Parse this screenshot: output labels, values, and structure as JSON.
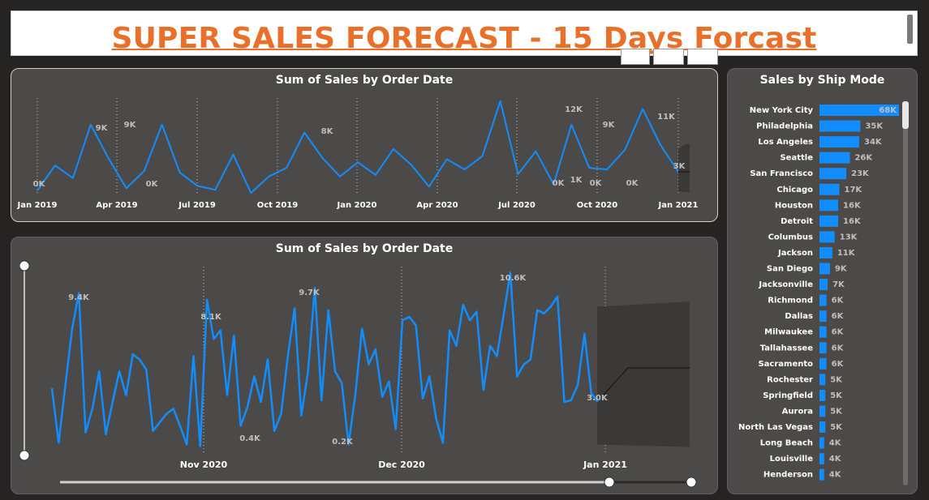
{
  "header": {
    "title": "SUPER SALES FORECAST - 15 Days Forcast"
  },
  "colors": {
    "accent": "#118dff",
    "title": "#e8702a",
    "panel": "#4c4a48",
    "background": "#252423"
  },
  "chart_data": [
    {
      "type": "line",
      "title": "Sum of Sales by Order Date",
      "x_tick_labels": [
        "Jan 2019",
        "Apr 2019",
        "Jul 2019",
        "Oct 2019",
        "Jan 2020",
        "Apr 2020",
        "Jul 2020",
        "Oct 2020",
        "Jan 2021"
      ],
      "data_labels": [
        "0K",
        "9K",
        "9K",
        "0K",
        "8K",
        "12K",
        "0K",
        "1K",
        "9K",
        "0K",
        "0K",
        "11K",
        "3K"
      ],
      "ylim": [
        0,
        12500
      ],
      "series": [
        {
          "values": [
            600,
            3800,
            2200,
            9000,
            4700,
            900,
            3100,
            9000,
            2900,
            1200,
            700,
            5200,
            300,
            2400,
            3500,
            8000,
            4800,
            2400,
            4200,
            2600,
            5900,
            3900,
            1100,
            4600,
            3300,
            5000,
            12000,
            2700,
            5600,
            1400,
            9000,
            3500,
            3300,
            5800,
            11000,
            6400,
            3000
          ]
        }
      ],
      "forecast": {
        "upper": [
          5800,
          6300,
          6500,
          6600
        ],
        "lower": [
          500,
          450,
          400,
          350
        ],
        "center": [
          3000,
          3000,
          3000,
          3000
        ]
      }
    },
    {
      "type": "line",
      "title": "Sum of Sales by Order Date",
      "x_tick_labels": [
        "Nov 2020",
        "Dec 2020",
        "Jan 2021"
      ],
      "data_labels": [
        "9.4K",
        "8.1K",
        "0.4K",
        "9.7K",
        "0.2K",
        "10.6K",
        "3.0K"
      ],
      "ylim": [
        0,
        11000
      ],
      "series": [
        {
          "values": [
            3800,
            600,
            4000,
            7300,
            9400,
            1200,
            2600,
            4800,
            1100,
            3000,
            4800,
            3400,
            5800,
            5500,
            4900,
            1300,
            1800,
            2300,
            2600,
            1600,
            500,
            5700,
            400,
            9000,
            6700,
            7200,
            3400,
            6900,
            1600,
            2700,
            4500,
            3000,
            5500,
            1300,
            2300,
            5700,
            8500,
            2200,
            4800,
            9700,
            3100,
            8400,
            4800,
            4100,
            500,
            3400,
            7300,
            5200,
            6100,
            3300,
            4200,
            1400,
            7800,
            8000,
            7500,
            3200,
            4500,
            2000,
            600,
            7200,
            6300,
            8700,
            7800,
            8300,
            3700,
            6300,
            5700,
            8100,
            10600,
            4500,
            5200,
            5500,
            8400,
            8200,
            8600,
            9200,
            3000,
            3100,
            4000,
            7000,
            3500,
            3000
          ]
        }
      ],
      "forecast": {
        "upper": [
          8600,
          8700,
          8800,
          8900
        ],
        "lower": [
          500,
          450,
          400,
          350
        ],
        "center": [
          3000,
          5000,
          5000,
          5000
        ]
      }
    },
    {
      "type": "bar",
      "title": "Sales by Ship Mode",
      "categories": [
        "New York City",
        "Philadelphia",
        "Los Angeles",
        "Seattle",
        "San Francisco",
        "Chicago",
        "Houston",
        "Detroit",
        "Columbus",
        "Jackson",
        "San Diego",
        "Jacksonville",
        "Richmond",
        "Dallas",
        "Milwaukee",
        "Tallahassee",
        "Sacramento",
        "Rochester",
        "Springfield",
        "Aurora",
        "North Las Vegas",
        "Long Beach",
        "Louisville",
        "Henderson"
      ],
      "values": [
        68,
        35,
        34,
        26,
        23,
        17,
        16,
        16,
        13,
        11,
        9,
        7,
        6,
        6,
        6,
        6,
        6,
        5,
        5,
        5,
        5,
        4,
        4,
        4
      ],
      "value_labels": [
        "68K",
        "35K",
        "34K",
        "26K",
        "23K",
        "17K",
        "16K",
        "16K",
        "13K",
        "11K",
        "9K",
        "7K",
        "6K",
        "6K",
        "6K",
        "6K",
        "6K",
        "5K",
        "5K",
        "5K",
        "5K",
        "4K",
        "4K",
        "4K"
      ]
    }
  ]
}
